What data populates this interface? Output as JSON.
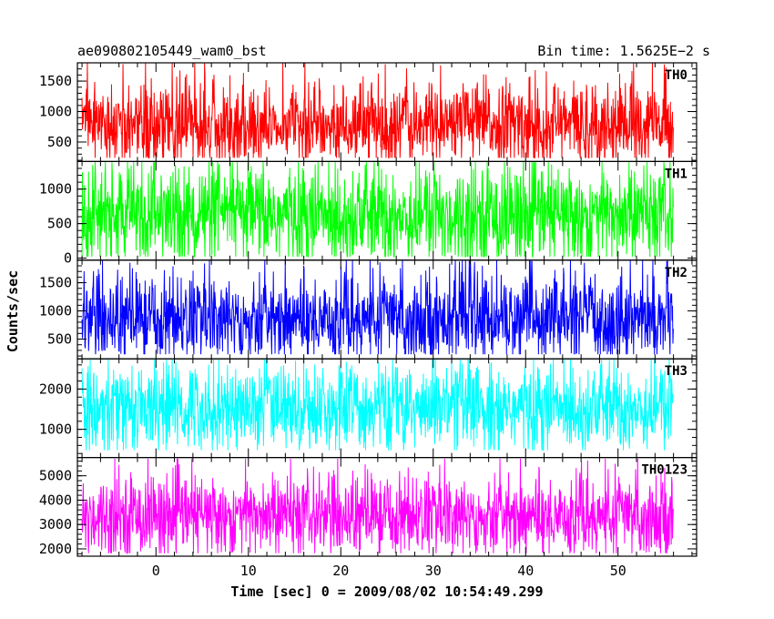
{
  "header": {
    "left": "ae090802105449_wam0_bst",
    "right": "Bin time: 1.5625E−2 s"
  },
  "chart_data": {
    "type": "line",
    "title": "ae090802105449_wam0_bst",
    "bin_time": "Bin time: 1.5625E−2 s",
    "xlabel": "Time [sec] 0 = 2009/08/02 10:54:49.299",
    "ylabel": "Counts/sec",
    "xlim": [
      -8.5,
      58.5
    ],
    "data_xrange": [
      -8.0,
      56.0
    ],
    "x_ticks": [
      0,
      10,
      20,
      30,
      40,
      50
    ],
    "grid": false,
    "panels": [
      {
        "name": "TH0",
        "color": "#ff0000",
        "ylim": [
          180,
          1800
        ],
        "y_ticks": [
          500,
          1000,
          1500
        ],
        "envelope": {
          "min_low": 240,
          "p10": 380,
          "median": 800,
          "p90": 1290,
          "max_high": 1800
        }
      },
      {
        "name": "TH1",
        "color": "#00ff00",
        "ylim": [
          -30,
          1400
        ],
        "y_ticks": [
          0,
          500,
          1000
        ],
        "envelope": {
          "min_low": 20,
          "p10": 120,
          "median": 620,
          "p90": 1080,
          "max_high": 1390
        }
      },
      {
        "name": "TH2",
        "color": "#0000ff",
        "ylim": [
          150,
          1900
        ],
        "y_ticks": [
          500,
          1000,
          1500
        ],
        "envelope": {
          "min_low": 230,
          "p10": 400,
          "median": 880,
          "p90": 1400,
          "max_high": 1890
        }
      },
      {
        "name": "TH3",
        "color": "#00ffff",
        "ylim": [
          300,
          2750
        ],
        "y_ticks": [
          1000,
          2000
        ],
        "envelope": {
          "min_low": 480,
          "p10": 800,
          "median": 1540,
          "p90": 2210,
          "max_high": 2750
        }
      },
      {
        "name": "TH0123",
        "color": "#ff00ff",
        "ylim": [
          1700,
          5750
        ],
        "y_ticks": [
          2000,
          3000,
          4000,
          5000
        ],
        "envelope": {
          "min_low": 1820,
          "p10": 2300,
          "median": 3380,
          "p90": 4450,
          "max_high": 5700
        }
      }
    ]
  }
}
